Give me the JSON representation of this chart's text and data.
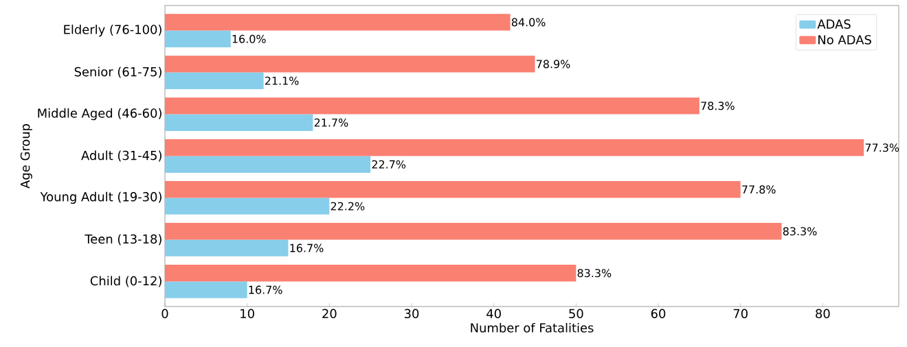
{
  "chart_data": {
    "type": "bar",
    "orientation": "horizontal",
    "xlabel": "Number of Fatalities",
    "ylabel": "Age Group",
    "categories": [
      "Elderly (76-100)",
      "Senior (61-75)",
      "Middle Aged (46-60)",
      "Adult (31-45)",
      "Young Adult (19-30)",
      "Teen (13-18)",
      "Child (0-12)"
    ],
    "series": [
      {
        "name": "ADAS",
        "color": "#87ceeb",
        "values": [
          8,
          12,
          18,
          25,
          20,
          15,
          10
        ]
      },
      {
        "name": "No ADAS",
        "color": "#fa8072",
        "values": [
          42,
          45,
          65,
          85,
          70,
          75,
          50
        ]
      }
    ],
    "annotations": [
      {
        "text": "16.0%",
        "x": 8,
        "y": "Elderly (76-100)"
      },
      {
        "text": "21.1%",
        "x": 12,
        "y": "Senior (61-75)"
      },
      {
        "text": "21.7%",
        "x": 18,
        "y": "Middle Aged (46-60)"
      },
      {
        "text": "22.7%",
        "x": 25,
        "y": "Adult (31-45)"
      },
      {
        "text": "22.2%",
        "x": 20,
        "y": "Young Adult (19-30)"
      },
      {
        "text": "16.7%",
        "x": 15,
        "y": "Teen (13-18)"
      },
      {
        "text": "16.7%",
        "x": 10,
        "y": "Child (0-12)"
      },
      {
        "text": "84.0%",
        "x": 42,
        "y": "Elderly (76-100)"
      },
      {
        "text": "78.9%",
        "x": 45,
        "y": "Senior (61-75)"
      },
      {
        "text": "78.3%",
        "x": 65,
        "y": "Middle Aged (46-60)"
      },
      {
        "text": "77.3%",
        "x": 85,
        "y": "Adult (31-45)"
      },
      {
        "text": "77.8%",
        "x": 70,
        "y": "Young Adult (19-30)"
      },
      {
        "text": "83.3%",
        "x": 75,
        "y": "Teen (13-18)"
      },
      {
        "text": "83.3%",
        "x": 50,
        "y": "Child (0-12)"
      }
    ],
    "xlim": [
      0,
      89.25
    ],
    "xticks": [
      0,
      10,
      20,
      30,
      40,
      50,
      60,
      70,
      80
    ],
    "legend": "top right"
  }
}
